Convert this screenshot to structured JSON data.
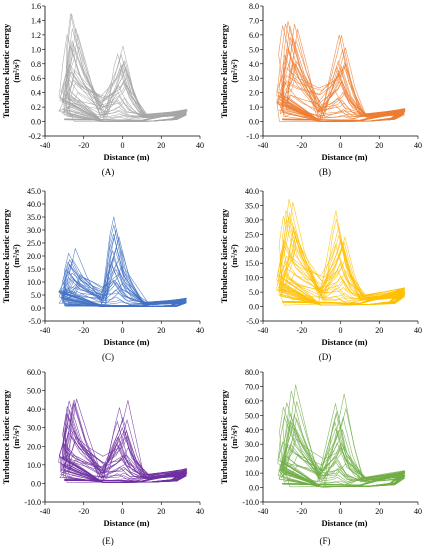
{
  "chart_data": [
    {
      "type": "line",
      "caption": "(A)",
      "xlabel": "Distance (m)",
      "ylabel_line1": "Turbulence kinetic energy",
      "ylabel_line2": "(m²/s²)",
      "xlim": [
        -40,
        40
      ],
      "ylim": [
        -0.2,
        1.6
      ],
      "xticks": [
        "-40",
        "-20",
        "0",
        "20",
        "40"
      ],
      "yticks": [
        "-0.2",
        "0.0",
        "0.2",
        "0.4",
        "0.6",
        "0.8",
        "1.0",
        "1.2",
        "1.4",
        "1.6"
      ],
      "color": "#a6a6a6",
      "peaks": {
        "left_x": -26,
        "left_y": 1.43,
        "right_x": 0,
        "right_y": 1.2,
        "tail_x": 33,
        "tail_y": 0.17,
        "base_y": 0.0
      }
    },
    {
      "type": "line",
      "caption": "(B)",
      "xlabel": "Distance (m)",
      "ylabel_line1": "Turbulence kinetic energy",
      "ylabel_line2": "(m²/s²)",
      "xlim": [
        -40,
        40
      ],
      "ylim": [
        -1.0,
        8.0
      ],
      "xticks": [
        "-40",
        "-20",
        "0",
        "20",
        "40"
      ],
      "yticks": [
        "-1.0",
        "0.0",
        "1.0",
        "2.0",
        "3.0",
        "4.0",
        "5.0",
        "6.0",
        "7.0",
        "8.0"
      ],
      "color": "#ed7d31",
      "peaks": {
        "left_x": -26,
        "left_y": 7.1,
        "right_x": 0,
        "right_y": 6.7,
        "tail_x": 33,
        "tail_y": 0.9,
        "base_y": 0.0
      }
    },
    {
      "type": "line",
      "caption": "(C)",
      "xlabel": "Distance (m)",
      "ylabel_line1": "Turbulence kinetic energy",
      "ylabel_line2": "(m²/s²)",
      "xlim": [
        -40,
        40
      ],
      "ylim": [
        -5.0,
        45.0
      ],
      "xticks": [
        "-40",
        "-20",
        "0",
        "20",
        "40"
      ],
      "yticks": [
        "-5.0",
        "0.0",
        "5.0",
        "10.0",
        "15.0",
        "20.0",
        "25.0",
        "30.0",
        "35.0",
        "40.0",
        "45.0"
      ],
      "color": "#4472c4",
      "peaks": {
        "left_x": -25,
        "left_y": 20.5,
        "right_x": -3,
        "right_y": 38,
        "tail_x": 33,
        "tail_y": 3.8,
        "base_y": 0.5
      }
    },
    {
      "type": "line",
      "caption": "(D)",
      "xlabel": "Distance (m)",
      "ylabel_line1": "Turbulence kinetic energy",
      "ylabel_line2": "(m²/s²)",
      "xlim": [
        -40,
        40
      ],
      "ylim": [
        -5.0,
        40.0
      ],
      "xticks": [
        "-40",
        "-20",
        "0",
        "20",
        "40"
      ],
      "yticks": [
        "-5.0",
        "0.0",
        "5.0",
        "10.0",
        "15.0",
        "20.0",
        "25.0",
        "30.0",
        "35.0",
        "40.0"
      ],
      "color": "#ffc000",
      "peaks": {
        "left_x": -26,
        "left_y": 36,
        "right_x": 0,
        "right_y": 35,
        "tail_x": 33,
        "tail_y": 6.5,
        "base_y": 0.5
      }
    },
    {
      "type": "line",
      "caption": "(E)",
      "xlabel": "Distance (m)",
      "ylabel_line1": "Turbulence kinetic energy",
      "ylabel_line2": "(m²/s²)",
      "xlim": [
        -40,
        40
      ],
      "ylim": [
        -10.0,
        60.0
      ],
      "xticks": [
        "-40",
        "-20",
        "0",
        "20",
        "40"
      ],
      "yticks": [
        "-10.0",
        "0.0",
        "10.0",
        "20.0",
        "30.0",
        "40.0",
        "50.0",
        "60.0"
      ],
      "color": "#7030a0",
      "peaks": {
        "left_x": -27,
        "left_y": 48,
        "right_x": 0,
        "right_y": 46,
        "tail_x": 33,
        "tail_y": 8,
        "base_y": 0.5
      }
    },
    {
      "type": "line",
      "caption": "(F)",
      "xlabel": "Distance (m)",
      "ylabel_line1": "Turbulence kinetic energy",
      "ylabel_line2": "(m²/s²)",
      "xlim": [
        -40,
        40
      ],
      "ylim": [
        -10.0,
        80.0
      ],
      "xticks": [
        "-40",
        "-20",
        "0",
        "20",
        "40"
      ],
      "yticks": [
        "-10.0",
        "0.0",
        "10.0",
        "20.0",
        "30.0",
        "40.0",
        "50.0",
        "60.0",
        "70.0",
        "80.0"
      ],
      "color": "#70ad47",
      "peaks": {
        "left_x": -26,
        "left_y": 66,
        "right_x": 0,
        "right_y": 65,
        "tail_x": 33,
        "tail_y": 12,
        "base_y": 0.5
      }
    }
  ]
}
